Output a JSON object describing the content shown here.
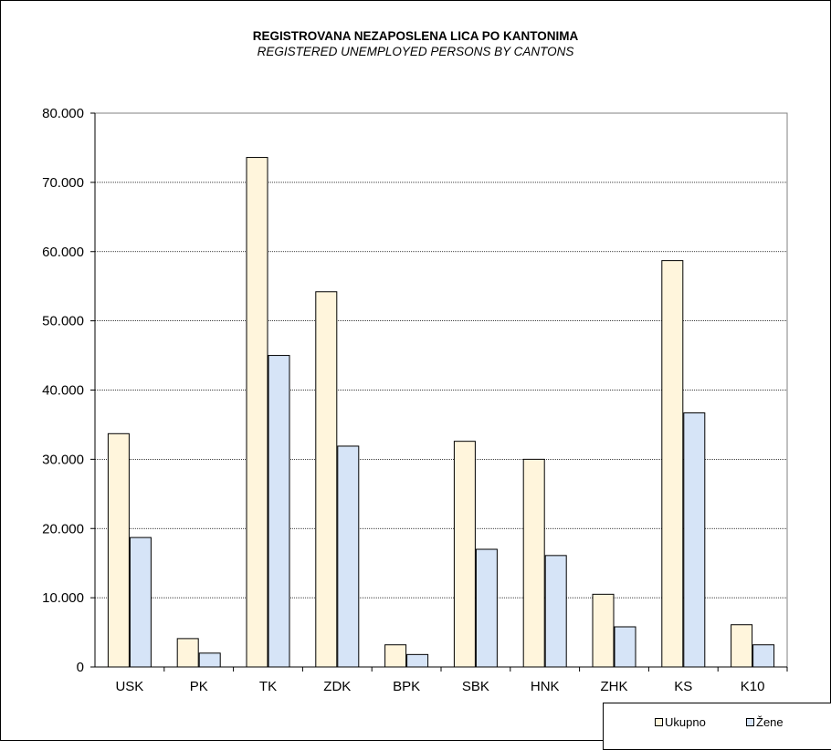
{
  "chart_data": {
    "type": "bar",
    "title": "REGISTROVANA NEZAPOSLENA LICA PO KANTONIMA",
    "subtitle": "REGISTERED UNEMPLOYED PERSONS BY CANTONS",
    "categories": [
      "USK",
      "PK",
      "TK",
      "ZDK",
      "BPK",
      "SBK",
      "HNK",
      "ZHK",
      "KS",
      "K10"
    ],
    "series": [
      {
        "name": "Ukupno",
        "color": "#FFF5DC",
        "values": [
          33700,
          4100,
          73600,
          54200,
          3200,
          32600,
          30000,
          10500,
          58700,
          6100
        ]
      },
      {
        "name": "Žene",
        "color": "#D6E4F7",
        "values": [
          18700,
          2000,
          45000,
          31900,
          1800,
          17000,
          16100,
          5800,
          36700,
          3200
        ]
      }
    ],
    "yticks": [
      "0",
      "10.000",
      "20.000",
      "30.000",
      "40.000",
      "50.000",
      "60.000",
      "70.000",
      "80.000"
    ],
    "ylim": [
      0,
      80000
    ],
    "grid": true,
    "legend_position": "bottom-right"
  }
}
